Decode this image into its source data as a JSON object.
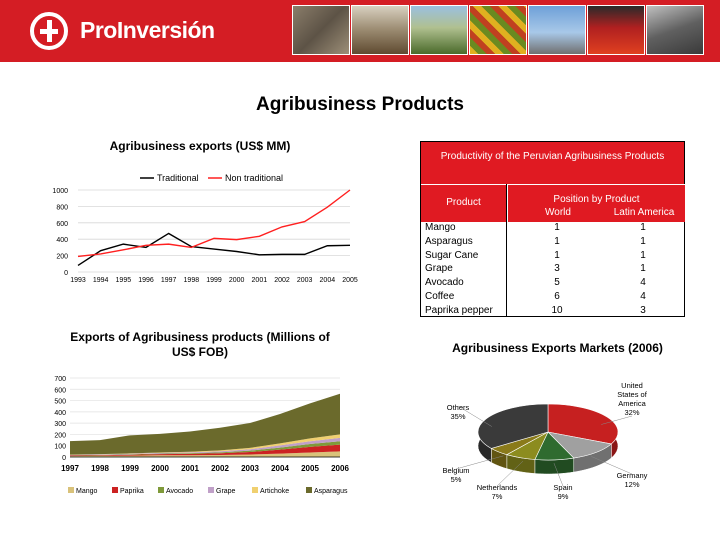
{
  "header": {
    "brand": "ProInversión",
    "accent": "#d41d24"
  },
  "page_title": "Agribusiness Products",
  "chart_data": [
    {
      "type": "line",
      "title": "Agribusiness exports (US$ MM)",
      "categories": [
        "1993",
        "1994",
        "1995",
        "1996",
        "1997",
        "1998",
        "1999",
        "2000",
        "2001",
        "2002",
        "2003",
        "2004",
        "2005"
      ],
      "series": [
        {
          "name": "Traditional",
          "color": "#000000",
          "values": [
            80,
            260,
            340,
            300,
            470,
            310,
            280,
            250,
            210,
            215,
            215,
            320,
            325
          ]
        },
        {
          "name": "Non traditional",
          "color": "#ff2020",
          "values": [
            190,
            220,
            270,
            325,
            340,
            300,
            410,
            395,
            435,
            550,
            615,
            790,
            1000
          ]
        }
      ],
      "ylim": [
        0,
        1000
      ],
      "yticks": [
        "0",
        "200",
        "400",
        "600",
        "800",
        "1000"
      ],
      "legend": "top"
    },
    {
      "type": "table",
      "title": "Productivity of the Peruvian Agribusiness Products",
      "headers": {
        "product": "Product",
        "position": "Position by Product",
        "world": "World",
        "latam": "Latin America"
      },
      "rows": [
        {
          "product": "Mango",
          "world": "1",
          "latam": "1"
        },
        {
          "product": "Asparagus",
          "world": "1",
          "latam": "1"
        },
        {
          "product": "Sugar Cane",
          "world": "1",
          "latam": "1"
        },
        {
          "product": "Grape",
          "world": "3",
          "latam": "1"
        },
        {
          "product": "Avocado",
          "world": "5",
          "latam": "4"
        },
        {
          "product": "Coffee",
          "world": "6",
          "latam": "4"
        },
        {
          "product": "Paprika pepper",
          "world": "10",
          "latam": "3"
        }
      ]
    },
    {
      "type": "area",
      "title": "Exports of Agribusiness products (Millions of US$ FOB)",
      "categories": [
        "1997",
        "1998",
        "1999",
        "2000",
        "2001",
        "2002",
        "2003",
        "2004",
        "2005",
        "2006"
      ],
      "series": [
        {
          "name": "Mango",
          "color": "#d9c27a",
          "values": [
            8,
            10,
            12,
            15,
            16,
            18,
            22,
            30,
            40,
            50
          ]
        },
        {
          "name": "Paprika",
          "color": "#cc2222",
          "values": [
            5,
            6,
            8,
            10,
            12,
            15,
            22,
            35,
            50,
            60
          ]
        },
        {
          "name": "Avocado",
          "color": "#7f9a3a",
          "values": [
            3,
            3,
            4,
            5,
            6,
            8,
            12,
            18,
            25,
            30
          ]
        },
        {
          "name": "Grape",
          "color": "#c0a0c8",
          "values": [
            3,
            4,
            5,
            6,
            7,
            10,
            13,
            20,
            25,
            30
          ]
        },
        {
          "name": "Artichoke",
          "color": "#f0d070",
          "values": [
            2,
            2,
            3,
            4,
            5,
            8,
            12,
            18,
            25,
            30
          ]
        },
        {
          "name": "Asparagus",
          "color": "#6b6a2c",
          "values": [
            120,
            125,
            160,
            165,
            180,
            200,
            220,
            260,
            310,
            360
          ]
        }
      ],
      "ylim": [
        0,
        700
      ],
      "yticks": [
        "0",
        "100",
        "200",
        "300",
        "400",
        "500",
        "600",
        "700"
      ],
      "legend": "bottom"
    },
    {
      "type": "pie",
      "title": "Agribusiness Exports Markets (2006)",
      "slices": [
        {
          "label": "United States of America",
          "value": 32,
          "display": "32%",
          "color": "#c62020"
        },
        {
          "label": "Germany",
          "value": 12,
          "display": "12%",
          "color": "#a0a0a0"
        },
        {
          "label": "Spain",
          "value": 9,
          "display": "9%",
          "color": "#2f6b2f"
        },
        {
          "label": "Netherlands",
          "value": 7,
          "display": "7%",
          "color": "#8c8c1f"
        },
        {
          "label": "Belgium",
          "value": 5,
          "display": "5%",
          "color": "#8a7a1a"
        },
        {
          "label": "Others",
          "value": 35,
          "display": "35%",
          "color": "#3a3a3a"
        }
      ]
    }
  ]
}
